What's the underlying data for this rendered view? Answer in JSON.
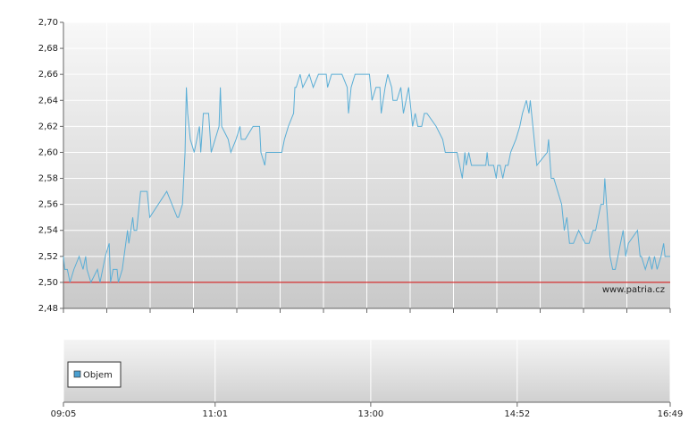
{
  "chart_data": [
    {
      "type": "line",
      "x": [
        "09:05",
        "09:06",
        "09:08",
        "09:10",
        "09:13",
        "09:17",
        "09:20",
        "09:22",
        "09:23",
        "09:26",
        "09:31",
        "09:33",
        "09:37",
        "09:40",
        "09:41",
        "09:43",
        "09:46",
        "09:47",
        "09:50",
        "09:54",
        "09:55",
        "09:58",
        "09:59",
        "10:01",
        "10:04",
        "10:09",
        "10:11",
        "10:24",
        "10:32",
        "10:33",
        "10:36",
        "10:38",
        "10:39",
        "10:40",
        "10:42",
        "10:45",
        "10:49",
        "10:50",
        "10:52",
        "10:56",
        "10:58",
        "11:01",
        "11:04",
        "11:05",
        "11:06",
        "11:11",
        "11:13",
        "11:17",
        "11:20",
        "11:21",
        "11:24",
        "11:30",
        "11:35",
        "11:36",
        "11:39",
        "11:40",
        "11:52",
        "11:54",
        "11:57",
        "12:01",
        "12:02",
        "12:03",
        "12:06",
        "12:08",
        "12:13",
        "12:16",
        "12:20",
        "12:26",
        "12:27",
        "12:30",
        "12:38",
        "12:42",
        "12:43",
        "12:45",
        "12:48",
        "12:59",
        "13:01",
        "13:04",
        "13:07",
        "13:08",
        "13:11",
        "13:13",
        "13:16",
        "13:17",
        "13:20",
        "13:23",
        "13:25",
        "13:29",
        "13:32",
        "13:34",
        "13:36",
        "13:39",
        "13:41",
        "13:43",
        "13:50",
        "13:55",
        "13:57",
        "14:02",
        "14:06",
        "14:08",
        "14:10",
        "14:12",
        "14:13",
        "14:15",
        "14:17",
        "14:28",
        "14:29",
        "14:30",
        "14:34",
        "14:36",
        "14:37",
        "14:39",
        "14:41",
        "14:43",
        "14:45",
        "14:47",
        "14:51",
        "14:54",
        "14:56",
        "14:59",
        "15:01",
        "15:02",
        "15:04",
        "15:07",
        "15:15",
        "15:16",
        "15:18",
        "15:20",
        "15:23",
        "15:26",
        "15:28",
        "15:30",
        "15:32",
        "15:35",
        "15:39",
        "15:44",
        "15:47",
        "15:50",
        "15:52",
        "15:54",
        "15:56",
        "15:58",
        "15:59",
        "16:01",
        "16:03",
        "16:05",
        "16:07",
        "16:09",
        "16:11",
        "16:13",
        "16:15",
        "16:17",
        "16:24",
        "16:26",
        "16:27",
        "16:30",
        "16:33",
        "16:35",
        "16:37",
        "16:39",
        "16:42",
        "16:44",
        "16:45",
        "16:49"
      ],
      "series": [
        {
          "color": "#5aaed6",
          "values": [
            2.52,
            2.51,
            2.51,
            2.5,
            2.51,
            2.52,
            2.51,
            2.52,
            2.51,
            2.5,
            2.51,
            2.5,
            2.52,
            2.53,
            2.5,
            2.51,
            2.51,
            2.5,
            2.51,
            2.54,
            2.53,
            2.55,
            2.54,
            2.54,
            2.57,
            2.57,
            2.55,
            2.57,
            2.55,
            2.55,
            2.56,
            2.6,
            2.65,
            2.63,
            2.61,
            2.6,
            2.62,
            2.6,
            2.63,
            2.63,
            2.6,
            2.61,
            2.62,
            2.65,
            2.62,
            2.61,
            2.6,
            2.61,
            2.62,
            2.61,
            2.61,
            2.62,
            2.62,
            2.6,
            2.59,
            2.6,
            2.6,
            2.61,
            2.62,
            2.63,
            2.65,
            2.65,
            2.66,
            2.65,
            2.66,
            2.65,
            2.66,
            2.66,
            2.65,
            2.66,
            2.66,
            2.65,
            2.63,
            2.65,
            2.66,
            2.66,
            2.64,
            2.65,
            2.65,
            2.63,
            2.65,
            2.66,
            2.65,
            2.64,
            2.64,
            2.65,
            2.63,
            2.65,
            2.62,
            2.63,
            2.62,
            2.62,
            2.63,
            2.63,
            2.62,
            2.61,
            2.6,
            2.6,
            2.6,
            2.59,
            2.58,
            2.6,
            2.59,
            2.6,
            2.59,
            2.59,
            2.6,
            2.59,
            2.59,
            2.58,
            2.59,
            2.59,
            2.58,
            2.59,
            2.59,
            2.6,
            2.61,
            2.62,
            2.63,
            2.64,
            2.63,
            2.64,
            2.62,
            2.59,
            2.6,
            2.61,
            2.58,
            2.58,
            2.57,
            2.56,
            2.54,
            2.55,
            2.53,
            2.53,
            2.54,
            2.53,
            2.53,
            2.54,
            2.54,
            2.55,
            2.56,
            2.56,
            2.58,
            2.55,
            2.52,
            2.51,
            2.51,
            2.52,
            2.53,
            2.54,
            2.52,
            2.53,
            2.54,
            2.52,
            2.52,
            2.51,
            2.52,
            2.51,
            2.52,
            2.51,
            2.52,
            2.53,
            2.52,
            2.52
          ]
        }
      ],
      "xlim": [
        "09:05",
        "16:49"
      ],
      "ylim": [
        2.48,
        2.7
      ],
      "yticks": [
        {
          "value": 2.48,
          "label": "2,48"
        },
        {
          "value": 2.5,
          "label": "2,50"
        },
        {
          "value": 2.52,
          "label": "2,52"
        },
        {
          "value": 2.54,
          "label": "2,54"
        },
        {
          "value": 2.56,
          "label": "2,56"
        },
        {
          "value": 2.58,
          "label": "2,58"
        },
        {
          "value": 2.6,
          "label": "2,60"
        },
        {
          "value": 2.62,
          "label": "2,62"
        },
        {
          "value": 2.64,
          "label": "2,64"
        },
        {
          "value": 2.66,
          "label": "2,66"
        },
        {
          "value": 2.68,
          "label": "2,68"
        },
        {
          "value": 2.7,
          "label": "2,70"
        }
      ],
      "reference_line": {
        "value": 2.5,
        "color": "#cc0000"
      },
      "watermark": "www.patria.cz",
      "grid": true
    },
    {
      "type": "bar",
      "series": [
        {
          "name": "Objem",
          "color": "#4a9fd0"
        }
      ],
      "xlim": [
        "09:05",
        "16:49"
      ],
      "xticks": [
        "09:05",
        "11:01",
        "13:00",
        "14:52",
        "16:49"
      ],
      "legend": "lower left",
      "grid": true
    }
  ]
}
